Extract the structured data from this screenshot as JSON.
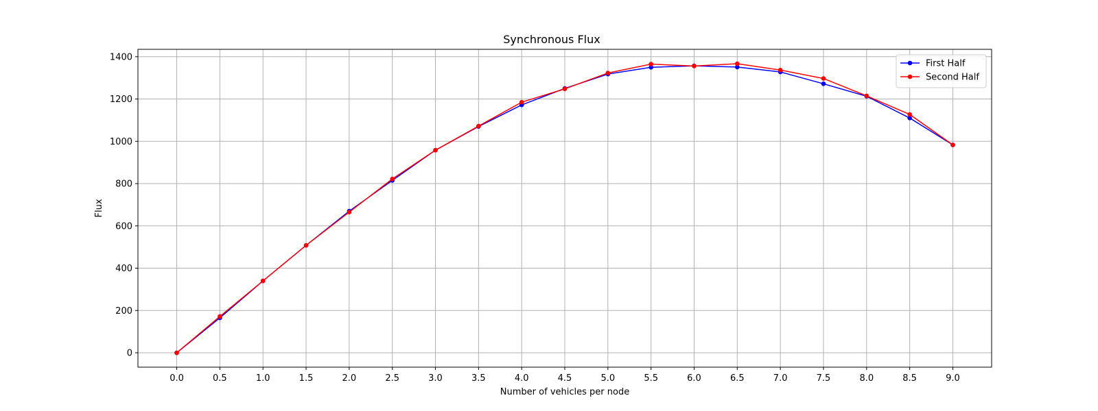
{
  "chart_data": {
    "type": "line",
    "title": "Synchronous Flux",
    "xlabel": "Number of vehicles per node",
    "ylabel": "Flux",
    "x": [
      0.0,
      0.5,
      1.0,
      1.5,
      2.0,
      2.5,
      3.0,
      3.5,
      4.0,
      4.5,
      5.0,
      5.5,
      6.0,
      6.5,
      7.0,
      7.5,
      8.0,
      8.5,
      9.0
    ],
    "xticks": [
      "0.0",
      "0.5",
      "1.0",
      "1.5",
      "2.0",
      "2.5",
      "3.0",
      "3.5",
      "4.0",
      "4.5",
      "5.0",
      "5.5",
      "6.0",
      "6.5",
      "7.0",
      "7.5",
      "8.0",
      "8.5",
      "9.0"
    ],
    "yticks": [
      "0",
      "200",
      "400",
      "600",
      "800",
      "1000",
      "1200",
      "1400"
    ],
    "xlim": [
      -0.45,
      9.45
    ],
    "ylim": [
      -68,
      1435
    ],
    "grid": true,
    "legend_position": "top-right",
    "series": [
      {
        "name": "First Half",
        "color": "#0000ff",
        "marker": "circle",
        "values": [
          0,
          165,
          340,
          508,
          670,
          815,
          958,
          1070,
          1172,
          1250,
          1318,
          1350,
          1357,
          1351,
          1328,
          1272,
          1213,
          1110,
          983
        ]
      },
      {
        "name": "Second Half",
        "color": "#ff0000",
        "marker": "circle",
        "values": [
          0,
          172,
          340,
          508,
          665,
          822,
          958,
          1072,
          1185,
          1248,
          1323,
          1365,
          1356,
          1367,
          1337,
          1297,
          1215,
          1127,
          983
        ]
      }
    ]
  }
}
